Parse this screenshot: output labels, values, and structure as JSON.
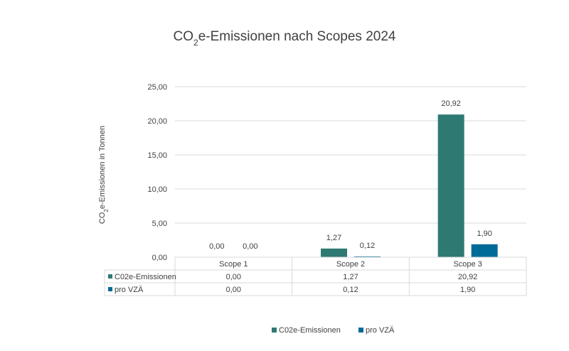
{
  "chart_data": {
    "type": "bar",
    "title_parts": [
      "CO",
      "2",
      "e-Emissionen nach Scopes 2024"
    ],
    "ylabel_parts": [
      "CO",
      "2",
      "e-Emissionen in Tonnen"
    ],
    "categories": [
      "Scope 1",
      "Scope 2",
      "Scope 3"
    ],
    "series": [
      {
        "name": "C02e-Emissionen",
        "values": [
          0.0,
          1.27,
          20.92
        ],
        "labels": [
          "0,00",
          "1,27",
          "20,92"
        ],
        "color": "#2e7a72"
      },
      {
        "name": "pro VZÄ",
        "values": [
          0.0,
          0.12,
          1.9
        ],
        "labels": [
          "0,00",
          "0,12",
          "1,90"
        ],
        "color": "#006b96"
      }
    ],
    "ylim": [
      0,
      25
    ],
    "yticks": [
      0,
      5,
      10,
      15,
      20,
      25
    ],
    "ytick_labels": [
      "0,00",
      "5,00",
      "10,00",
      "15,00",
      "20,00",
      "25,00"
    ],
    "grid": true,
    "data_table": true,
    "legend_position": "bottom"
  }
}
